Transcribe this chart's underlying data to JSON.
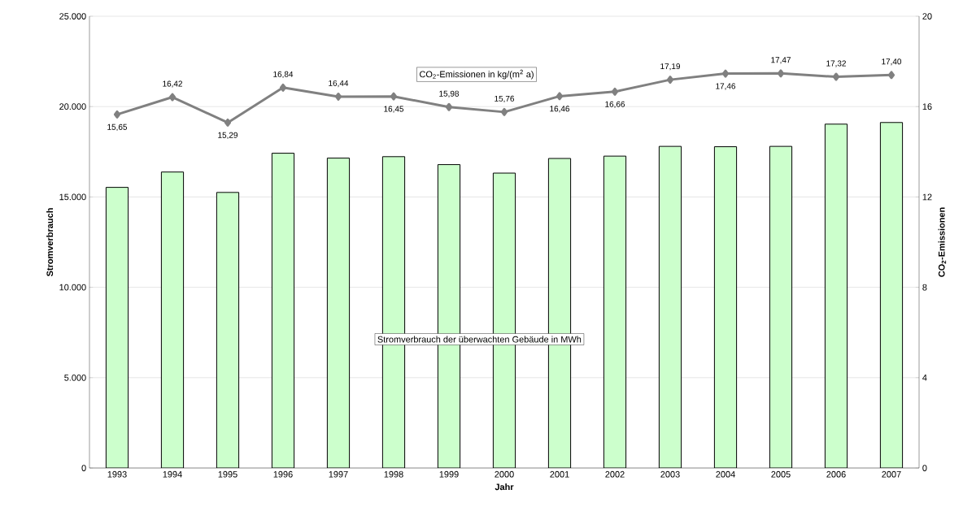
{
  "chart_data": {
    "type": "bar",
    "xlabel": "Jahr",
    "ylabel": "Stromverbrauch",
    "y2label": "CO$_{2}$-Emissionen",
    "categories": [
      "1993",
      "1994",
      "1995",
      "1996",
      "1997",
      "1998",
      "1999",
      "2000",
      "2001",
      "2002",
      "2003",
      "2004",
      "2005",
      "2006",
      "2007"
    ],
    "series": [
      {
        "name": "Stromverbrauch der überwachten Gebäude in MWh",
        "color": "#ccffcc",
        "values": [
          15530,
          16380,
          15250,
          17420,
          17150,
          17230,
          16790,
          16320,
          17130,
          17260,
          17800,
          17780,
          17800,
          19030,
          19120
        ]
      },
      {
        "name": "CO$_{2}$-Emissionen in kg/(m$^{2}$ a)",
        "type": "line",
        "axis": "y2",
        "color": "#808080",
        "marker": "diamond",
        "line_style": "solid",
        "values": [
          15.65,
          16.42,
          15.29,
          16.84,
          16.44,
          16.45,
          15.98,
          15.76,
          16.46,
          16.66,
          17.19,
          17.46,
          17.47,
          17.32,
          17.4
        ],
        "value_labels": [
          "15,65",
          "16,42",
          "15,29",
          "16,84",
          "16,44",
          "16,45",
          "15,98",
          "15,76",
          "16,46",
          "16,66",
          "17,19",
          "17,46",
          "17,47",
          "17,32",
          "17,40"
        ]
      }
    ],
    "ylim": [
      0,
      25000
    ],
    "yticks": [
      {
        "value": 0,
        "label": "0"
      },
      {
        "value": 5000,
        "label": "5.000"
      },
      {
        "value": 10000,
        "label": "10.000"
      },
      {
        "value": 15000,
        "label": "15.000"
      },
      {
        "value": 20000,
        "label": "20.000"
      },
      {
        "value": 25000,
        "label": "25.000"
      }
    ],
    "y2lim": [
      0,
      20
    ],
    "y2ticks": [
      0,
      4,
      8,
      12,
      16,
      20
    ],
    "grid": "y",
    "legend": false
  }
}
